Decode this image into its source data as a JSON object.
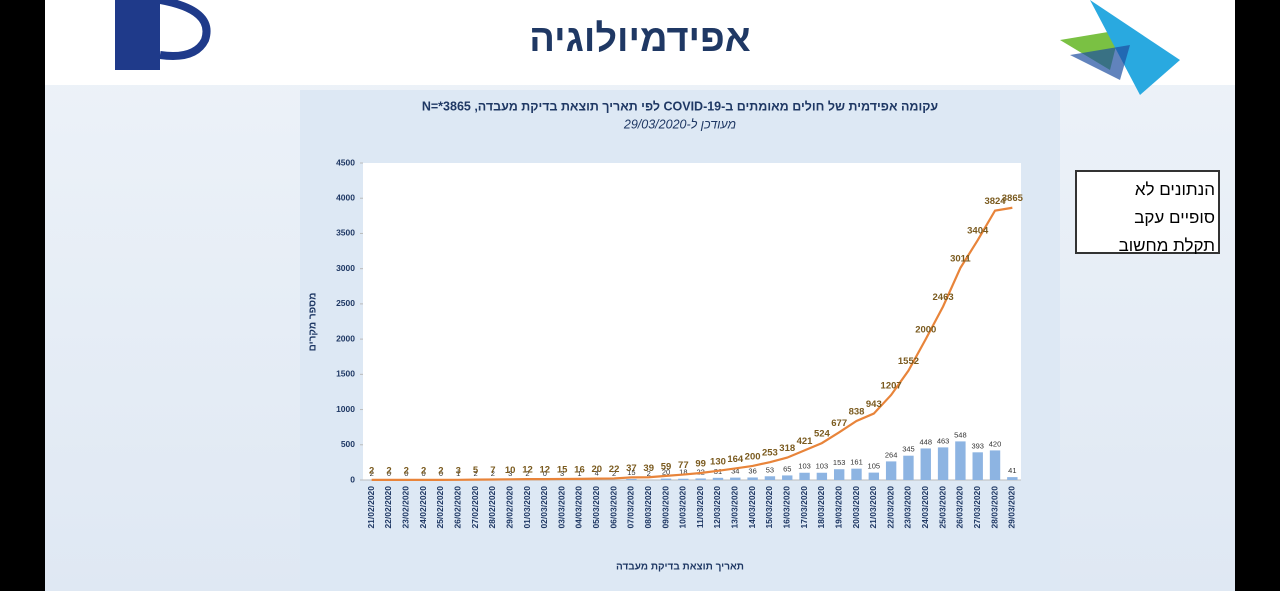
{
  "slide_title": "אפידמיולוגיה",
  "note_lines": [
    "הנתונים לא",
    "סופיים עקב",
    "תקלת מחשוב"
  ],
  "chart_data": {
    "type": "combo",
    "title": "עקומה אפידמית של חולים מאומתים ב-COVID-19 לפי תאריך תוצאת בדיקת מעבדה, N=*3865",
    "subtitle": "מעודכן ל-29/03/2020",
    "y_label": "מספר מקרים",
    "x_label": "תאריך תוצאת בדיקת מעבדה",
    "categories": [
      "21/02/2020",
      "22/02/2020",
      "23/02/2020",
      "24/02/2020",
      "25/02/2020",
      "26/02/2020",
      "27/02/2020",
      "28/02/2020",
      "29/02/2020",
      "01/03/2020",
      "02/03/2020",
      "03/03/2020",
      "04/03/2020",
      "05/03/2020",
      "06/03/2020",
      "07/03/2020",
      "08/03/2020",
      "09/03/2020",
      "10/03/2020",
      "11/03/2020",
      "12/03/2020",
      "13/03/2020",
      "14/03/2020",
      "15/03/2020",
      "16/03/2020",
      "17/03/2020",
      "18/03/2020",
      "19/03/2020",
      "20/03/2020",
      "21/03/2020",
      "22/03/2020",
      "23/03/2020",
      "24/03/2020",
      "25/03/2020",
      "26/03/2020",
      "27/03/2020",
      "28/03/2020",
      "29/03/2020"
    ],
    "series": [
      {
        "type": "bar",
        "color": "#8db4e2",
        "values": [
          2,
          0,
          0,
          0,
          0,
          1,
          2,
          2,
          3,
          2,
          0,
          3,
          1,
          4,
          2,
          15,
          2,
          20,
          18,
          22,
          31,
          34,
          36,
          53,
          65,
          103,
          103,
          153,
          161,
          105,
          264,
          345,
          448,
          463,
          548,
          393,
          420,
          41
        ]
      },
      {
        "type": "line",
        "color": "#e8843a",
        "values": [
          2,
          2,
          2,
          2,
          2,
          3,
          5,
          7,
          10,
          12,
          12,
          15,
          16,
          20,
          22,
          37,
          39,
          59,
          77,
          99,
          130,
          164,
          200,
          253,
          318,
          421,
          524,
          677,
          838,
          943,
          1207,
          1552,
          2000,
          2463,
          3011,
          3404,
          3824,
          3865
        ]
      }
    ],
    "ylim": [
      0,
      4500
    ],
    "yticks": [
      0,
      500,
      1000,
      1500,
      2000,
      2500,
      3000,
      3500,
      4000,
      4500
    ]
  }
}
